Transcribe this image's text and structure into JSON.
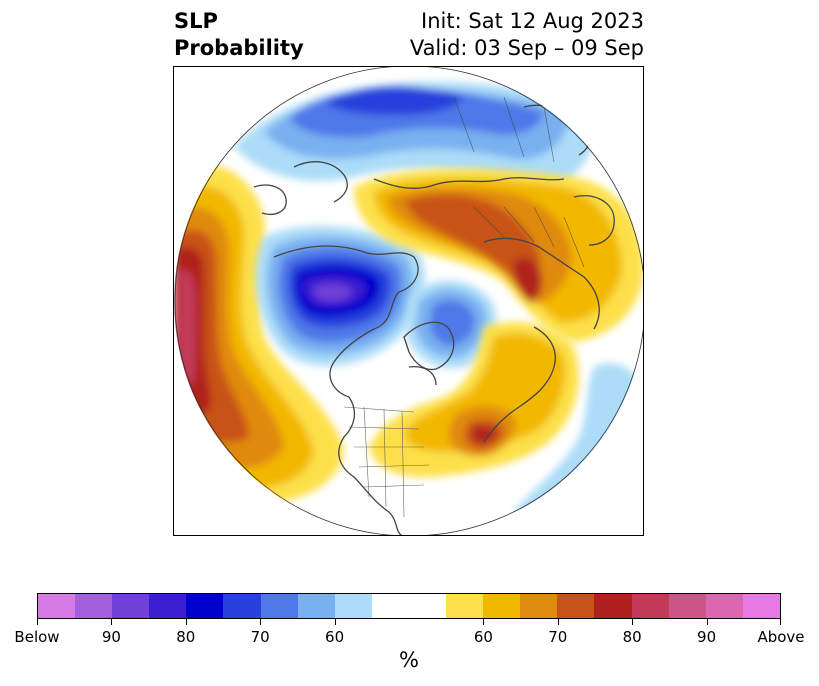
{
  "title": {
    "left_line1": "SLP",
    "left_line2": "Probability",
    "right_line1": "Init: Sat 12 Aug 2023",
    "right_line2": "Valid: 03 Sep – 09 Sep"
  },
  "colorbar": {
    "unit": "%",
    "colors": [
      "#d87ae6",
      "#a060e0",
      "#7040d8",
      "#3a1ed0",
      "#0000cc",
      "#2840dc",
      "#4f78e8",
      "#78b0f0",
      "#acdcf8",
      "#ffffff",
      "#ffffff",
      "#fde04a",
      "#f2b800",
      "#e08a10",
      "#c85318",
      "#b0201f",
      "#c23a58",
      "#cc5588",
      "#dd66b0",
      "#e878e2"
    ],
    "tick_labels": [
      "Below",
      "90",
      "80",
      "70",
      "60",
      "60",
      "70",
      "80",
      "90",
      "Above"
    ]
  },
  "colors": {
    "coast": "#444444"
  },
  "icons": [
    "north-pole-map"
  ]
}
